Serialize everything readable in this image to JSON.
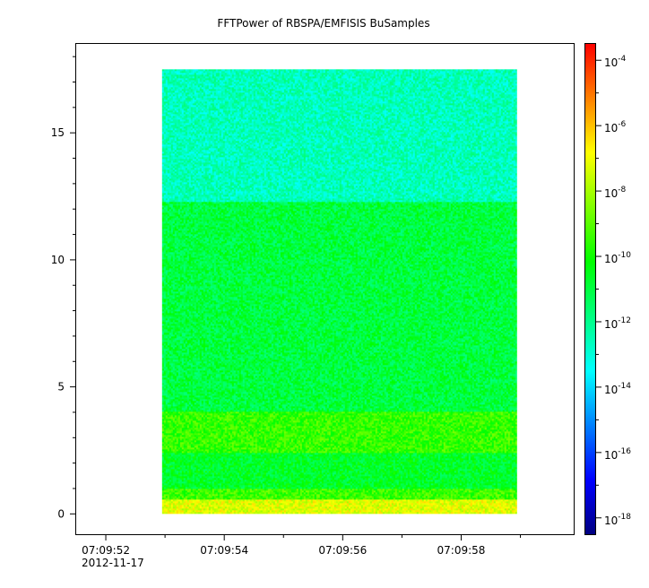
{
  "chart_data": {
    "type": "heatmap",
    "title": "FFTPower of RBSPA/EMFISIS  BuSamples",
    "xlabel": "",
    "ylabel": "",
    "x_ticks": [
      {
        "label": "07:09:52",
        "sublabel": "2012-11-17"
      },
      {
        "label": "07:09:54"
      },
      {
        "label": "07:09:56"
      },
      {
        "label": "07:09:58"
      }
    ],
    "x_range_seconds": [
      -0.5,
      7.9
    ],
    "x_data_range_seconds": [
      0.95,
      6.95
    ],
    "y_ticks": [
      0,
      5,
      10,
      15
    ],
    "ylim": [
      -0.8,
      18.5
    ],
    "y_data_range": [
      0.0,
      17.5
    ],
    "colorbar": {
      "scale": "log",
      "ticks": [
        {
          "base": "10",
          "exp": "-4"
        },
        {
          "base": "10",
          "exp": "-6"
        },
        {
          "base": "10",
          "exp": "-8"
        },
        {
          "base": "10",
          "exp": "-10"
        },
        {
          "base": "10",
          "exp": "-12"
        },
        {
          "base": "10",
          "exp": "-14"
        },
        {
          "base": "10",
          "exp": "-16"
        },
        {
          "base": "10",
          "exp": "-18"
        }
      ],
      "range_exp": [
        -18.5,
        -3.5
      ],
      "colormap": [
        "#000080",
        "#0000ff",
        "#0080ff",
        "#00ffff",
        "#00ff80",
        "#00ff00",
        "#80ff00",
        "#ffff00",
        "#ff8000",
        "#ff0000"
      ]
    },
    "spectrogram_bands": [
      {
        "freq_range": [
          12.3,
          17.5
        ],
        "log10_power": -12.6
      },
      {
        "freq_range": [
          4.0,
          12.3
        ],
        "log10_power": -11.0
      },
      {
        "freq_range": [
          2.4,
          4.0
        ],
        "log10_power": -9.5
      },
      {
        "freq_range": [
          1.0,
          2.4
        ],
        "log10_power": -10.7
      },
      {
        "freq_range": [
          0.55,
          1.0
        ],
        "log10_power": -9.4
      },
      {
        "freq_range": [
          0.0,
          0.55
        ],
        "log10_power": -7.2
      }
    ],
    "grid": false
  }
}
